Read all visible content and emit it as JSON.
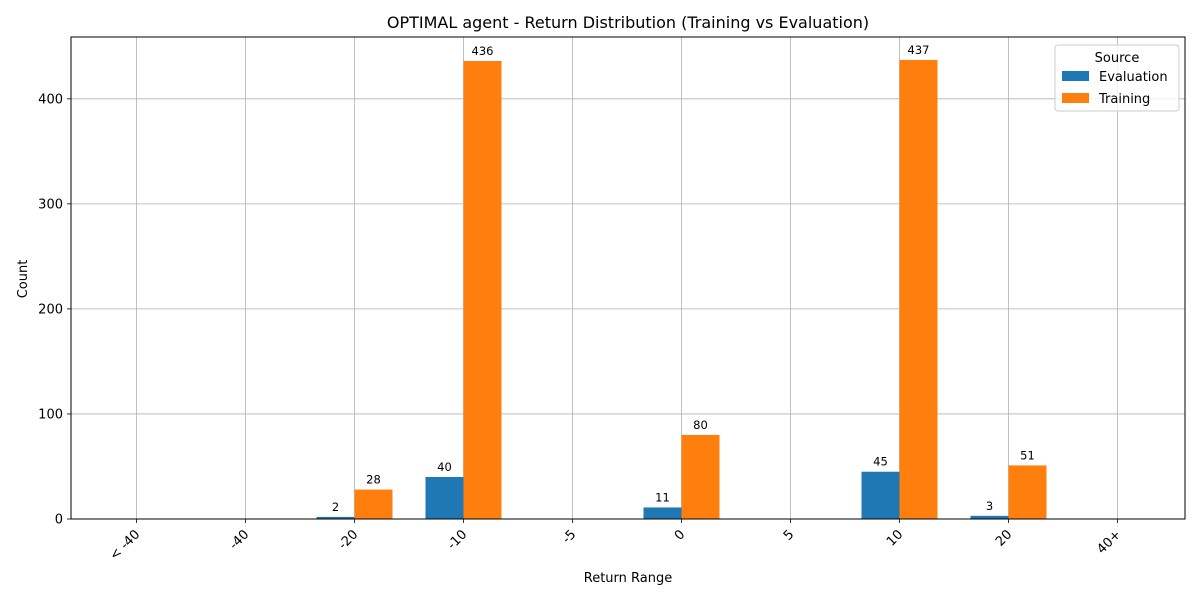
{
  "chart_data": {
    "type": "bar",
    "title": "OPTIMAL agent - Return Distribution (Training vs Evaluation)",
    "xlabel": "Return Range",
    "ylabel": "Count",
    "categories": [
      "< -40",
      "-40",
      "-20",
      "-10",
      "-5",
      "0",
      "5",
      "10",
      "20",
      "40+"
    ],
    "series": [
      {
        "name": "Evaluation",
        "color": "#1f77b4",
        "values": [
          0,
          0,
          2,
          40,
          0,
          11,
          0,
          45,
          3,
          0
        ]
      },
      {
        "name": "Training",
        "color": "#ff7f0e",
        "values": [
          0,
          0,
          28,
          436,
          0,
          80,
          0,
          437,
          51,
          0
        ]
      }
    ],
    "ylim": [
      0,
      458.85
    ],
    "yticks": [
      0,
      100,
      200,
      300,
      400
    ],
    "grid": true,
    "legend": {
      "title": "Source",
      "placement": "top-right"
    }
  }
}
